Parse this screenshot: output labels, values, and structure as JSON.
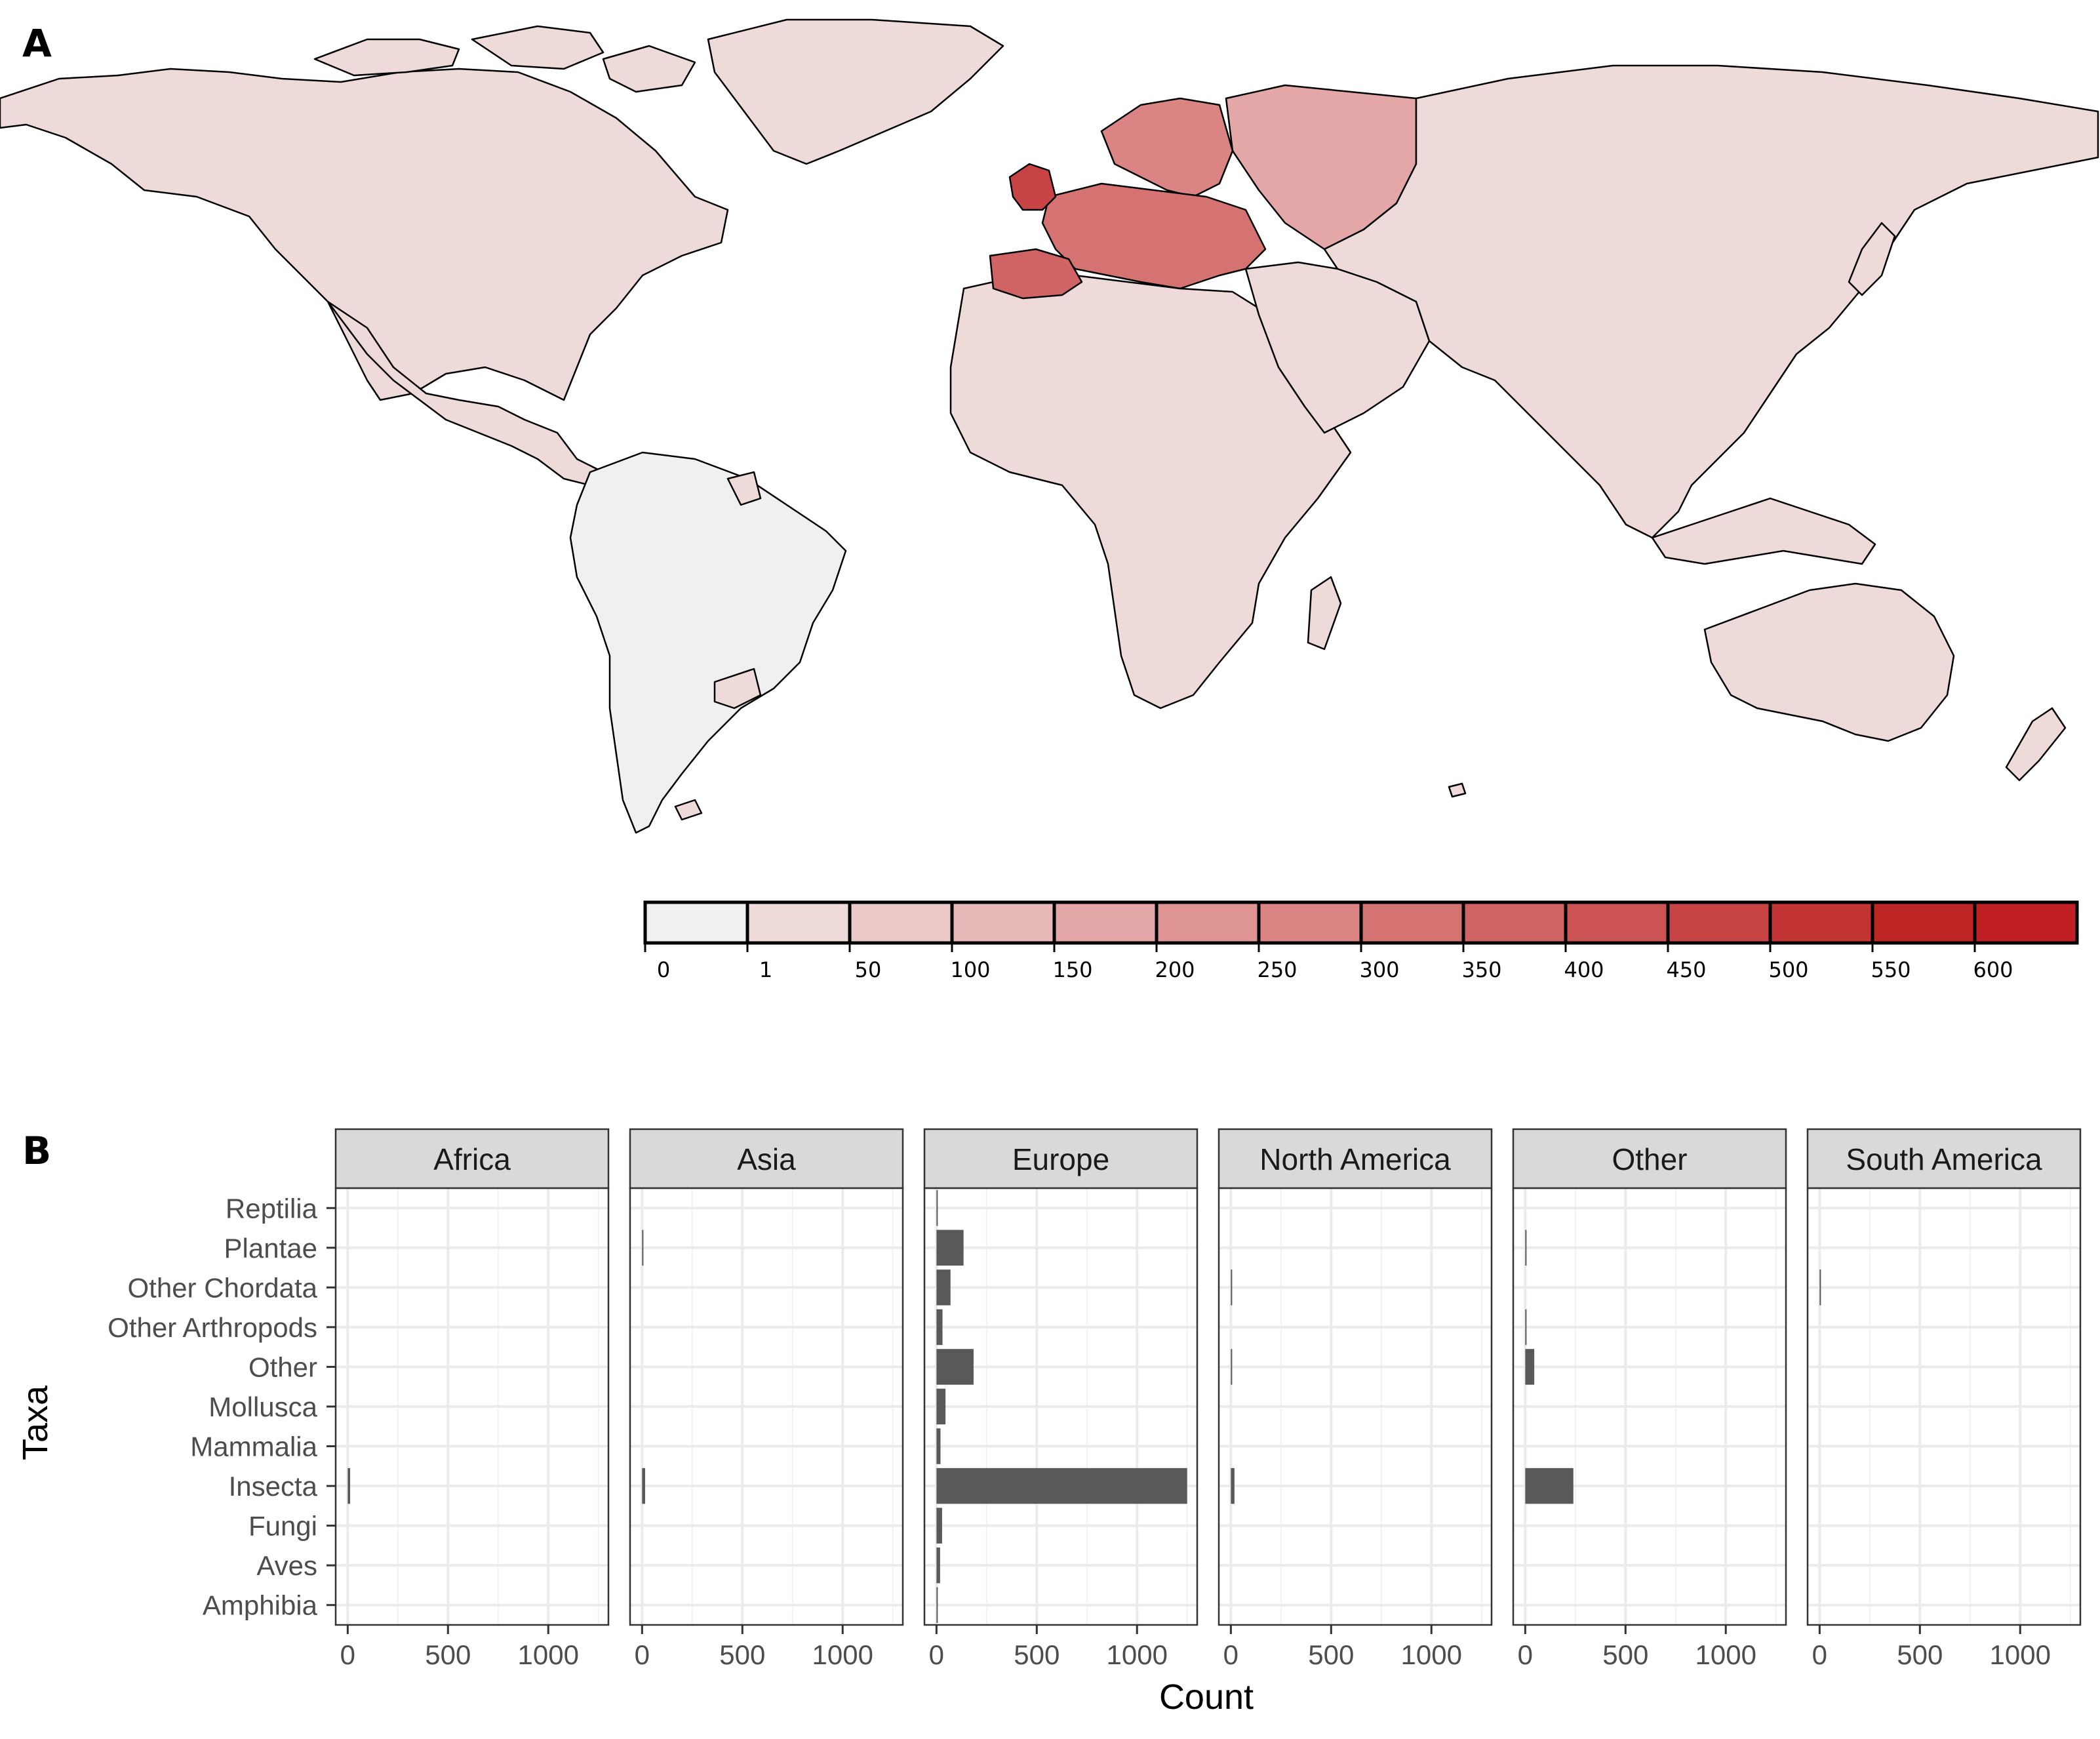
{
  "panel_a": {
    "label": "A",
    "map": {
      "fill_scale": [
        "#f0f0f0",
        "#efdada",
        "#ecc9c9",
        "#e8b9b9",
        "#e4a7a7",
        "#df9494",
        "#da8484",
        "#d57373",
        "#d06363",
        "#cc5353",
        "#c84444",
        "#c33434",
        "#be2626",
        "#c01f24"
      ],
      "region_fills": {
        "north_america": "#efdada",
        "central_america": "#efdada",
        "greenland": "#efdada",
        "south_america": "#f0f0f0",
        "south_america_patch": "#efdada",
        "africa": "#efdada",
        "middle_east": "#efdada",
        "russia_asia": "#efdada",
        "european_russia": "#e4a7a7",
        "scandinavia": "#da8484",
        "europe_central": "#d57373",
        "iberia": "#d06363",
        "uk": "#c84444",
        "australia": "#efdada",
        "island_patches": "#efdada"
      },
      "border_color": "#000000"
    },
    "legend": {
      "tick_labels": [
        "0",
        "1",
        "50",
        "100",
        "150",
        "200",
        "250",
        "300",
        "350",
        "400",
        "450",
        "500",
        "550",
        "600"
      ]
    }
  },
  "panel_b": {
    "label": "B",
    "chart_data": {
      "type": "bar",
      "orientation": "horizontal",
      "categories": [
        "Reptilia",
        "Plantae",
        "Other Chordata",
        "Other Arthropods",
        "Other",
        "Mollusca",
        "Mammalia",
        "Insecta",
        "Fungi",
        "Aves",
        "Amphibia"
      ],
      "facets": [
        "Africa",
        "Asia",
        "Europe",
        "North America",
        "Other",
        "South America"
      ],
      "series": [
        {
          "name": "Africa",
          "values": [
            0,
            0,
            0,
            0,
            0,
            0,
            0,
            12,
            0,
            0,
            0
          ]
        },
        {
          "name": "Asia",
          "values": [
            0,
            3,
            0,
            0,
            0,
            0,
            0,
            15,
            0,
            0,
            0
          ]
        },
        {
          "name": "Europe",
          "values": [
            2,
            135,
            70,
            30,
            185,
            45,
            20,
            1250,
            28,
            18,
            5
          ]
        },
        {
          "name": "North America",
          "values": [
            0,
            0,
            3,
            0,
            3,
            0,
            0,
            18,
            0,
            0,
            0
          ]
        },
        {
          "name": "Other",
          "values": [
            0,
            5,
            0,
            5,
            45,
            0,
            0,
            240,
            0,
            0,
            0
          ]
        },
        {
          "name": "South America",
          "values": [
            0,
            0,
            2,
            0,
            0,
            0,
            0,
            0,
            0,
            0,
            0
          ]
        }
      ],
      "xlabel": "Count",
      "ylabel": "Taxa",
      "xlim": [
        -60,
        1300
      ],
      "x_ticks": [
        0,
        500,
        1000
      ],
      "bar_color": "#595959",
      "grid": true,
      "strip_fill": "#d9d9d9"
    }
  }
}
